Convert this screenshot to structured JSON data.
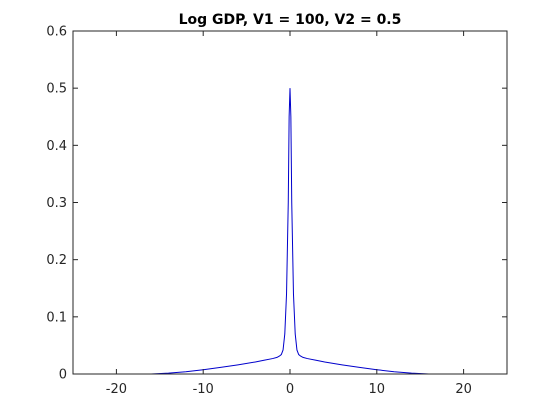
{
  "chart_data": {
    "type": "line",
    "title": "Log GDP, V1 = 100, V2 = 0.5",
    "xlabel": "",
    "ylabel": "",
    "xlim": [
      -25,
      25
    ],
    "ylim": [
      0,
      0.6
    ],
    "xticks": [
      -20,
      -10,
      0,
      10,
      20
    ],
    "yticks": [
      0,
      0.1,
      0.2,
      0.3,
      0.4,
      0.5,
      0.6
    ],
    "grid": false,
    "box": true,
    "series": [
      {
        "name": "",
        "color": "#0000cc",
        "x": [
          -16,
          -14,
          -12,
          -10,
          -8,
          -6,
          -4,
          -3,
          -2,
          -1.5,
          -1.2,
          -1,
          -0.8,
          -0.6,
          -0.4,
          -0.2,
          -0.1,
          0,
          0.1,
          0.2,
          0.4,
          0.6,
          0.8,
          1,
          1.2,
          1.5,
          2,
          3,
          4,
          6,
          8,
          10,
          12,
          14,
          16
        ],
        "y": [
          0.0,
          0.0015,
          0.004,
          0.0075,
          0.0115,
          0.016,
          0.021,
          0.024,
          0.027,
          0.029,
          0.0315,
          0.034,
          0.042,
          0.07,
          0.14,
          0.3,
          0.45,
          0.5,
          0.45,
          0.3,
          0.14,
          0.07,
          0.042,
          0.034,
          0.0315,
          0.029,
          0.027,
          0.024,
          0.021,
          0.016,
          0.0115,
          0.0075,
          0.004,
          0.0015,
          0.0
        ]
      }
    ]
  }
}
